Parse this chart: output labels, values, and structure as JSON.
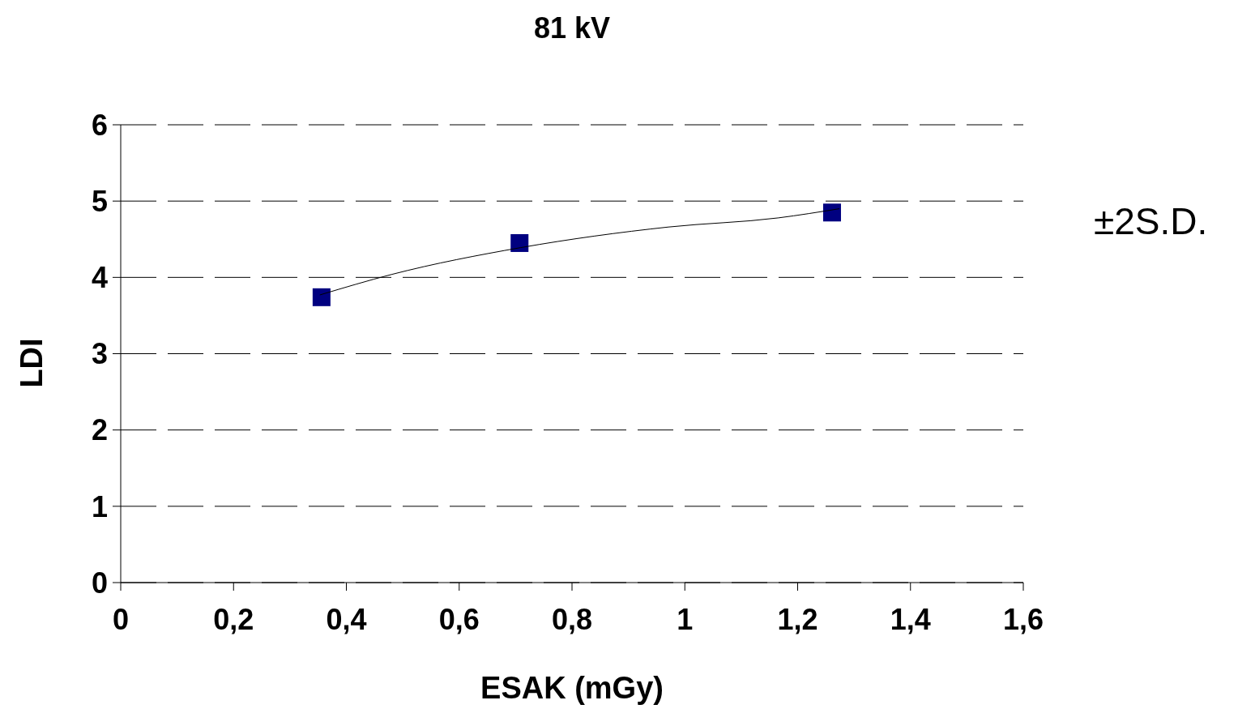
{
  "chart_data": {
    "type": "scatter",
    "title": "81 kV",
    "xlabel": "ESAK (mGy)",
    "ylabel": "LDI",
    "xlim": [
      0,
      1.6
    ],
    "xticks": [
      0,
      {
        "value": 0.2,
        "label": "0,2"
      },
      {
        "value": 0.4,
        "label": "0,4"
      },
      {
        "value": 0.6,
        "label": "0,6"
      },
      {
        "value": 0.8,
        "label": "0,8"
      },
      1,
      {
        "value": 1.2,
        "label": "1,2"
      },
      {
        "value": 1.4,
        "label": "1,4"
      },
      {
        "value": 1.6,
        "label": "1,6"
      }
    ],
    "ylim": [
      0,
      6
    ],
    "yticks": [
      0,
      1,
      2,
      3,
      4,
      5,
      6
    ],
    "grid": "y",
    "legend": false,
    "marker": "square",
    "series": [
      {
        "type": "scatter",
        "color": "#000080",
        "x": [
          0.356,
          0.707,
          1.261
        ],
        "values": [
          3.74,
          4.45,
          4.85
        ]
      },
      {
        "type": "line",
        "color": "#000000",
        "marker": "none",
        "line_style": "solid",
        "x": [
          0.353,
          0.481,
          0.709,
          0.971,
          1.166,
          1.274
        ],
        "values": [
          3.77,
          4.04,
          4.39,
          4.66,
          4.78,
          4.9
        ]
      }
    ],
    "annotations": [
      "±2S.D."
    ]
  }
}
